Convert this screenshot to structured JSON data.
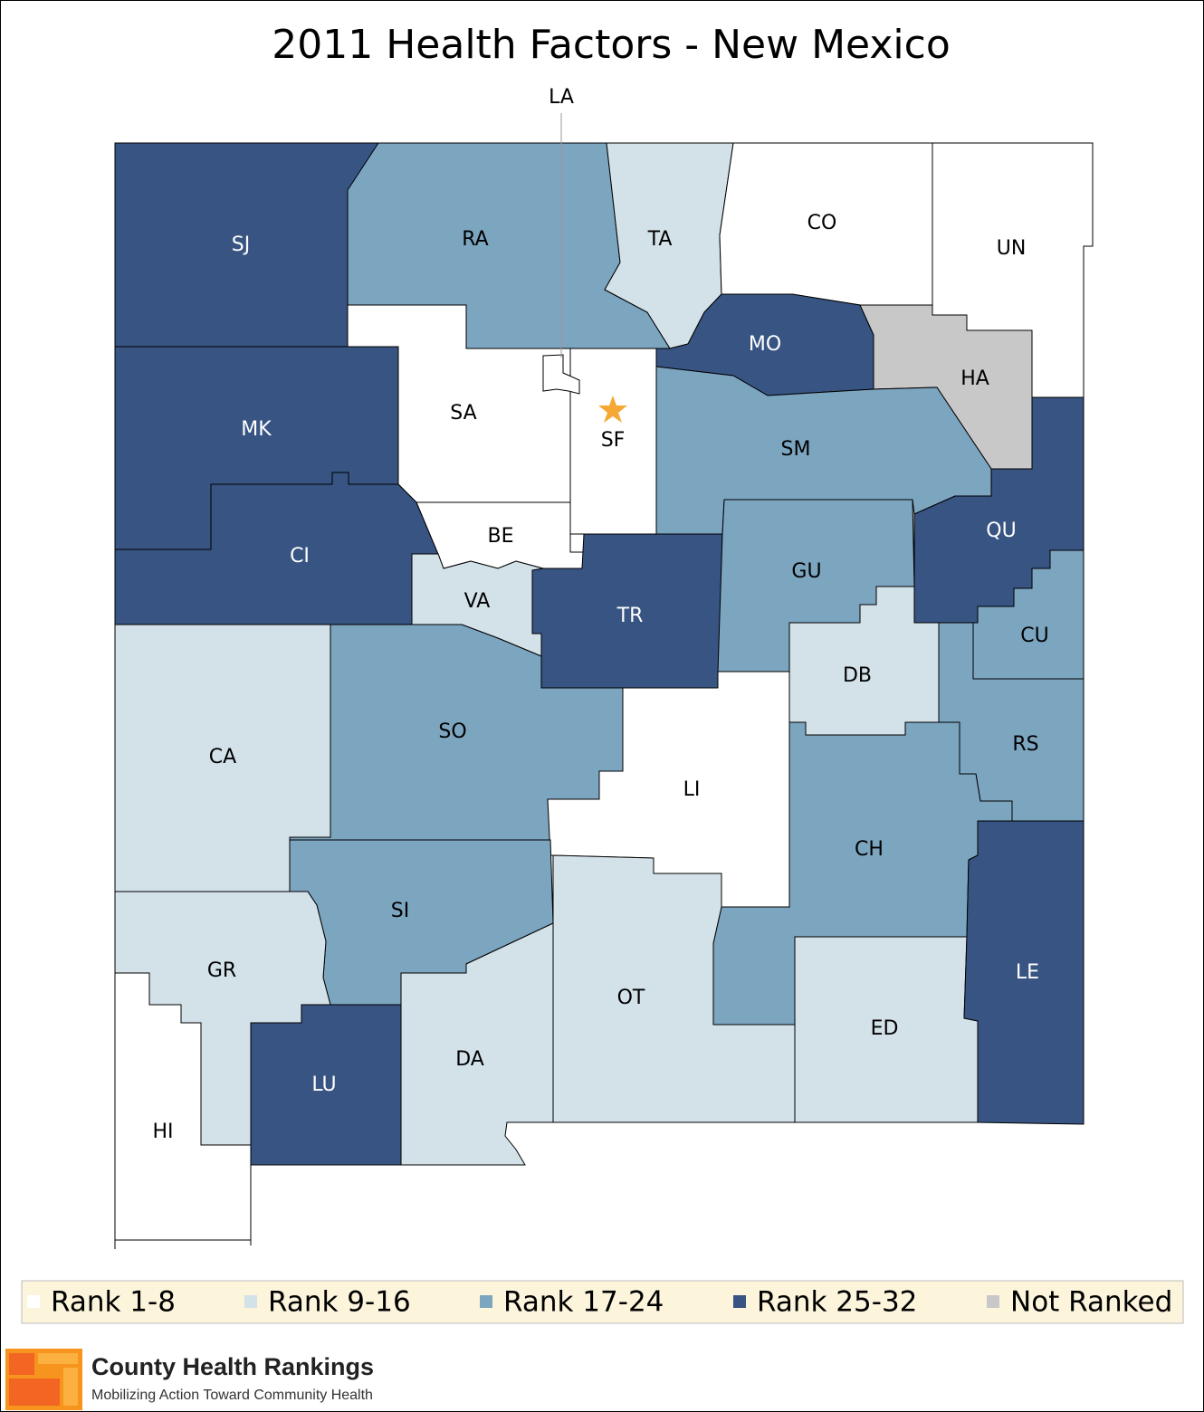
{
  "title": "2011 Health Factors - New Mexico",
  "counties": [
    {
      "label": "SJ",
      "color": "#375482"
    },
    {
      "label": "RA",
      "color": "#7ca5c0"
    },
    {
      "label": "TA",
      "color": "#d3e1e9"
    },
    {
      "label": "CO",
      "color": "#ffffff"
    },
    {
      "label": "UN",
      "color": "#ffffff"
    },
    {
      "label": "MO",
      "color": "#375482"
    },
    {
      "label": "HA",
      "color": "#c8c8c8"
    },
    {
      "label": "SA",
      "color": "#ffffff"
    },
    {
      "label": "SF",
      "color": "#ffffff"
    },
    {
      "label": "SM",
      "color": "#7ca5c0"
    },
    {
      "label": "MK",
      "color": "#375482"
    },
    {
      "label": "CI",
      "color": "#375482"
    },
    {
      "label": "BE",
      "color": "#ffffff"
    },
    {
      "label": "VA",
      "color": "#d3e1e9"
    },
    {
      "label": "TR",
      "color": "#375482"
    },
    {
      "label": "GU",
      "color": "#7ca5c0"
    },
    {
      "label": "QU",
      "color": "#375482"
    },
    {
      "label": "CU",
      "color": "#7ca5c0"
    },
    {
      "label": "DB",
      "color": "#d3e1e9"
    },
    {
      "label": "RS",
      "color": "#7ca5c0"
    },
    {
      "label": "SO",
      "color": "#7ca5c0"
    },
    {
      "label": "CA",
      "color": "#d3e1e9"
    },
    {
      "label": "LI",
      "color": "#ffffff"
    },
    {
      "label": "CH",
      "color": "#7ca5c0"
    },
    {
      "label": "SI",
      "color": "#7ca5c0"
    },
    {
      "label": "GR",
      "color": "#d3e1e9"
    },
    {
      "label": "HI",
      "color": "#ffffff"
    },
    {
      "label": "LU",
      "color": "#375482"
    },
    {
      "label": "DA",
      "color": "#d3e1e9"
    },
    {
      "label": "OT",
      "color": "#d3e1e9"
    },
    {
      "label": "ED",
      "color": "#d3e1e9"
    },
    {
      "label": "LE",
      "color": "#375482"
    },
    {
      "label": "LA",
      "color": "#ffffff"
    }
  ],
  "legend": [
    {
      "label": "Rank 1-8",
      "color": "#ffffff"
    },
    {
      "label": "Rank 9-16",
      "color": "#d3e1e9"
    },
    {
      "label": "Rank 17-24",
      "color": "#7ca5c0"
    },
    {
      "label": "Rank 25-32",
      "color": "#375482"
    },
    {
      "label": "Not Ranked",
      "color": "#c8c8c8"
    }
  ],
  "logo": {
    "name": "County Health Rankings",
    "tagline": "Mobilizing Action Toward Community Health"
  }
}
